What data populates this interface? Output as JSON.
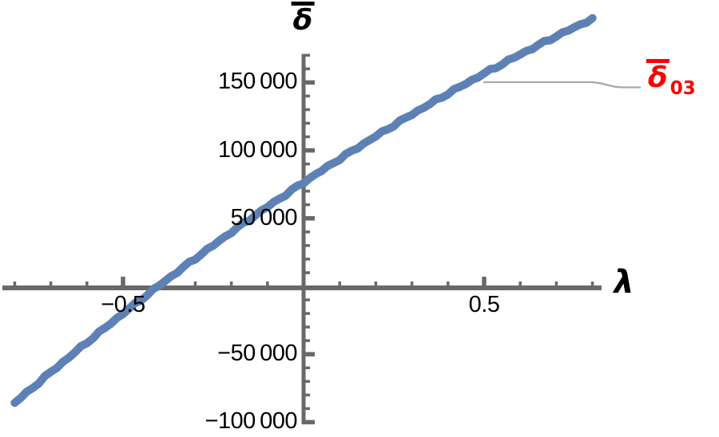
{
  "figure": {
    "y_axis_label": "δ",
    "y_axis_label_overbar": true,
    "x_axis_label": "λ",
    "curve_label": {
      "base": "δ",
      "subscript": "03",
      "color": "#fb0000",
      "overbar": true
    },
    "colors": {
      "curve": "#5e81b5",
      "axis": "#696969",
      "callout_line": "#a9a9a9",
      "tick_text": "#000000",
      "background": "#ffffff"
    }
  },
  "chart_data": {
    "type": "line",
    "title": "",
    "xlabel": "λ",
    "ylabel": "δ̅",
    "legend_position": "inline-callout-right",
    "grid": false,
    "xlim": [
      -0.83,
      0.83
    ],
    "ylim": [
      -110000,
      200000
    ],
    "x": [
      -0.8,
      -0.7,
      -0.6,
      -0.5,
      -0.4,
      -0.3,
      -0.2,
      -0.1,
      0.0,
      0.1,
      0.2,
      0.3,
      0.4,
      0.5,
      0.6,
      0.7,
      0.8
    ],
    "series": [
      {
        "name": "δ̅_03",
        "values": [
          -85800,
          -63200,
          -41300,
          -20000,
          600,
          20500,
          39900,
          58500,
          76500,
          93800,
          110500,
          126600,
          141900,
          156600,
          170700,
          184100,
          196900
        ]
      }
    ],
    "x_intercept": -0.41,
    "y_intercept": 76500,
    "x_ticks_major": [
      -0.5,
      0.5
    ],
    "x_tick_labels": [
      "−0.5",
      "0.5"
    ],
    "x_minor_step": 0.1,
    "x_minor_range": [
      -0.8,
      0.8
    ],
    "y_ticks_major": [
      150000,
      100000,
      50000,
      -50000,
      -100000
    ],
    "y_tick_labels": [
      "150 000",
      "100 000",
      "50 000",
      "−50 000",
      "−100 000"
    ],
    "y_minor_step": 10000,
    "y_minor_range": [
      -100000,
      170000
    ]
  }
}
